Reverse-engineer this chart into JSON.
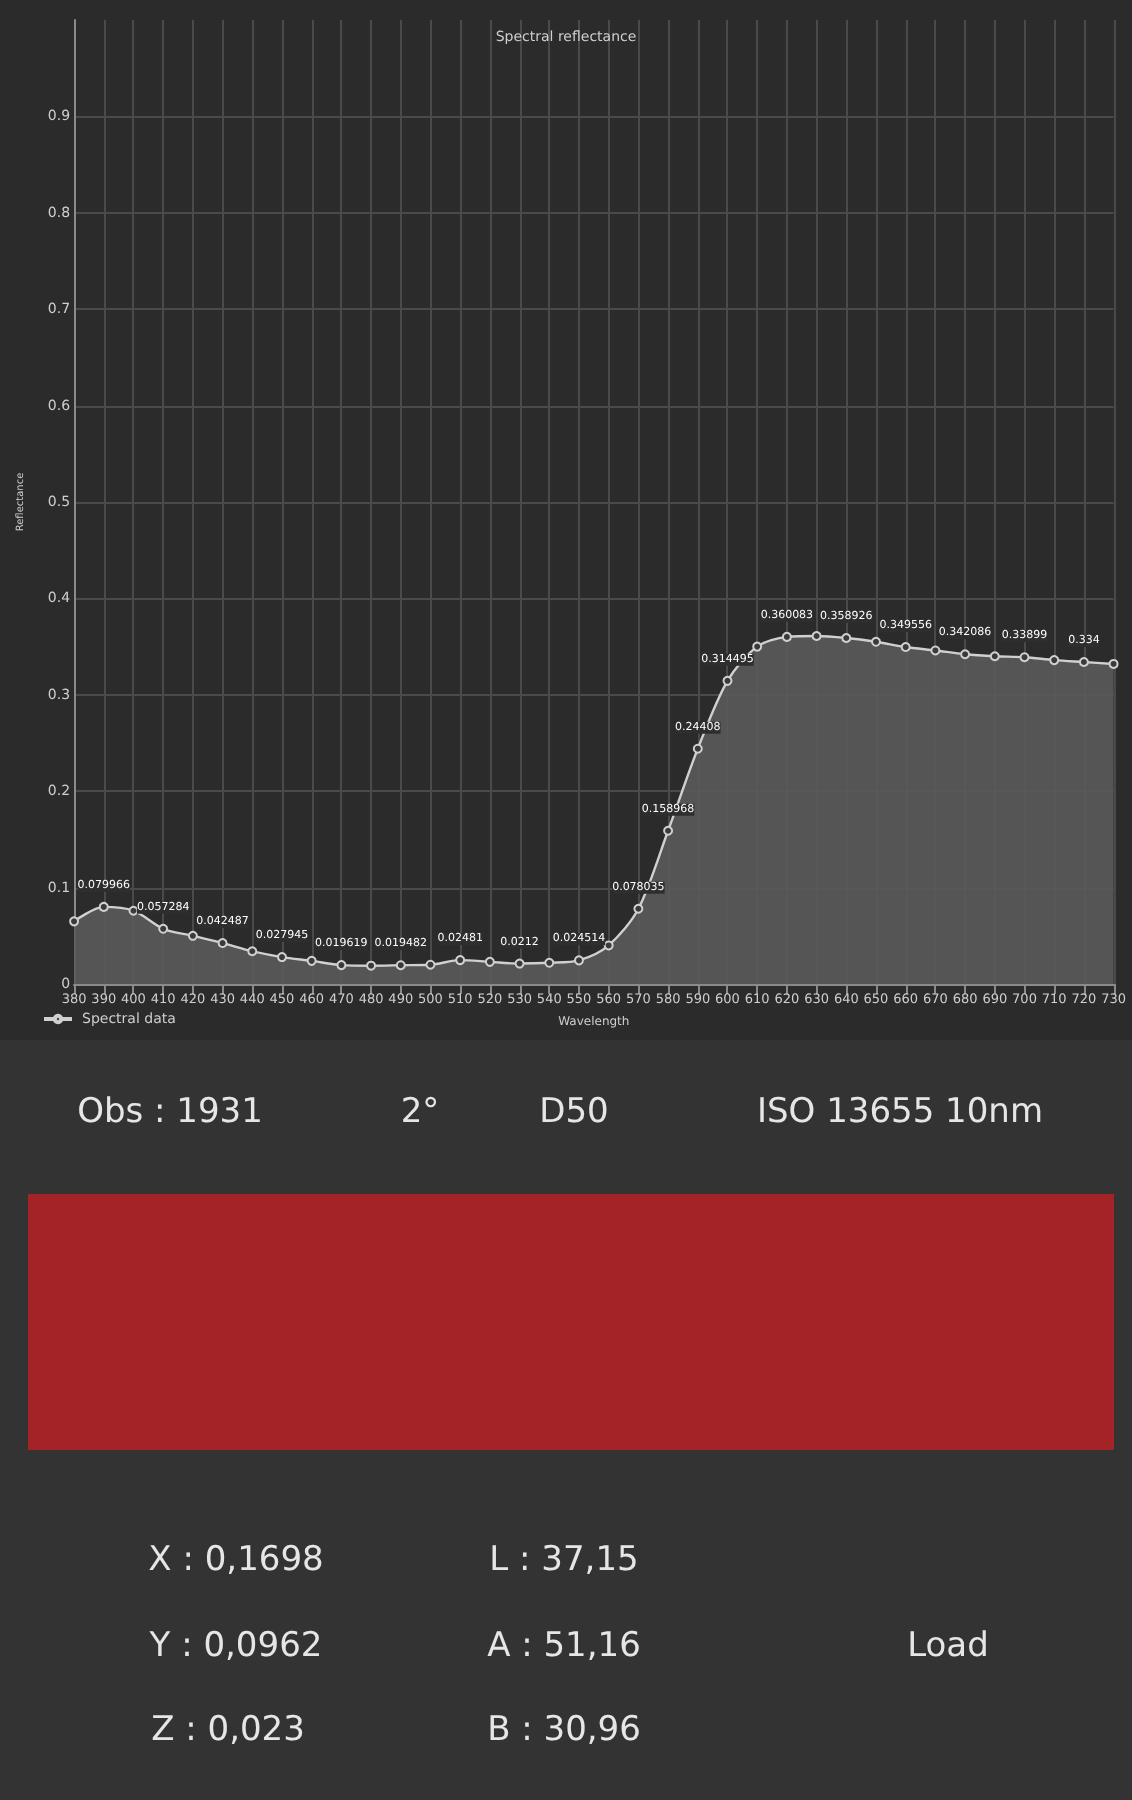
{
  "chart_data": {
    "type": "area",
    "title": "Spectral reflectance",
    "xlabel": "Wavelength",
    "ylabel": "Reflectance",
    "x": [
      380,
      390,
      400,
      410,
      420,
      430,
      440,
      450,
      460,
      470,
      480,
      490,
      500,
      510,
      520,
      530,
      540,
      550,
      560,
      570,
      580,
      590,
      600,
      610,
      620,
      630,
      640,
      650,
      660,
      670,
      680,
      690,
      700,
      710,
      720,
      730
    ],
    "series": [
      {
        "name": "Spectral data",
        "color": "#d0d0d0",
        "values": [
          0.065,
          0.079966,
          0.076,
          0.057284,
          0.05,
          0.042487,
          0.034,
          0.027945,
          0.024,
          0.019619,
          0.019,
          0.019482,
          0.02,
          0.02481,
          0.023,
          0.0212,
          0.022,
          0.024514,
          0.04,
          0.078035,
          0.158968,
          0.24408,
          0.314495,
          0.35,
          0.360083,
          0.361,
          0.358926,
          0.355,
          0.349556,
          0.346,
          0.342086,
          0.34,
          0.33899,
          0.336,
          0.334,
          0.332
        ],
        "value_labels": [
          null,
          "0.079966",
          null,
          "0.057284",
          null,
          "0.042487",
          null,
          "0.027945",
          null,
          "0.019619",
          null,
          "0.019482",
          null,
          "0.02481",
          null,
          "0.0212",
          null,
          "0.024514",
          null,
          "0.078035",
          "0.158968",
          "0.24408",
          "0.314495",
          null,
          "0.360083",
          null,
          "0.358926",
          null,
          "0.349556",
          null,
          "0.342086",
          null,
          "0.33899",
          null,
          "0.334",
          null
        ]
      }
    ],
    "xlim": [
      380,
      730
    ],
    "xticks": [
      380,
      390,
      400,
      410,
      420,
      430,
      440,
      450,
      460,
      470,
      480,
      490,
      500,
      510,
      520,
      530,
      540,
      550,
      560,
      570,
      580,
      590,
      600,
      610,
      620,
      630,
      640,
      650,
      660,
      670,
      680,
      690,
      700,
      710,
      720,
      730
    ],
    "ylim": [
      0,
      1
    ],
    "yticks": [
      0,
      0.1,
      0.2,
      0.3,
      0.4,
      0.5,
      0.6,
      0.7,
      0.8,
      0.9
    ],
    "grid": true,
    "legend": "bottom left",
    "marker": "circle",
    "line_style": "solid",
    "annotations": [
      "Obs : 1931",
      "2°",
      "D50",
      "ISO 13655 10nm",
      "X : 0,1698",
      "L : 37,15",
      "Y : 0,0962",
      "A : 51,16",
      "Load",
      "Z : 0,023",
      "B : 30,96"
    ]
  }
}
